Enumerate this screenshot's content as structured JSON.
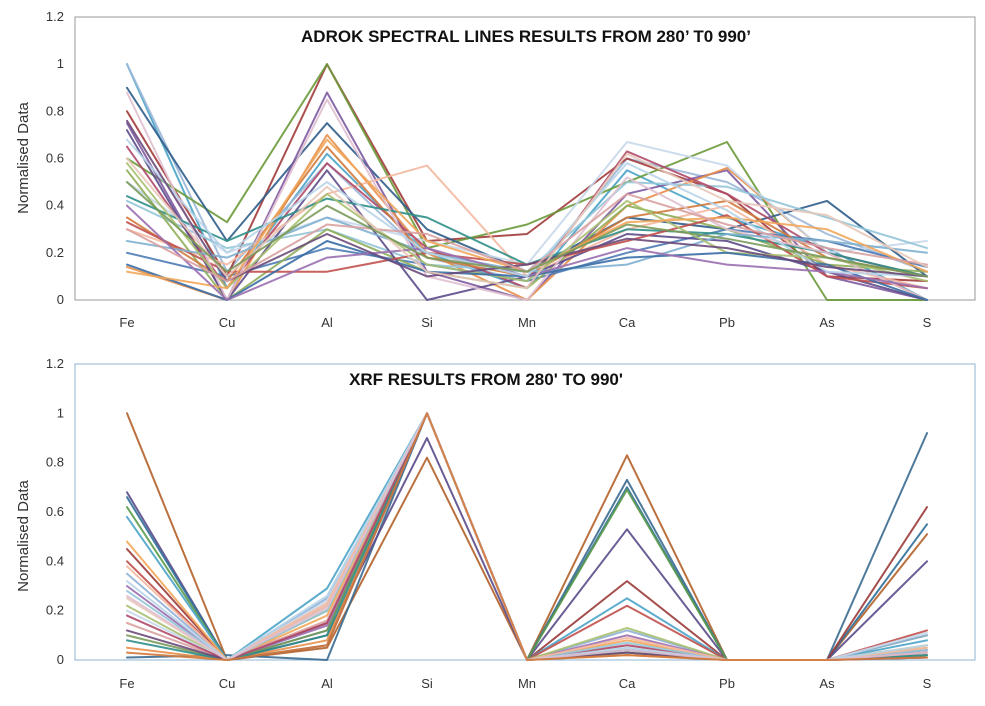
{
  "chart_data": [
    {
      "type": "line",
      "title": "ADROK SPECTRAL LINES RESULTS FROM 280’ T0 990’",
      "xlabel": "",
      "ylabel": "Normalised Data",
      "categories": [
        "Fe",
        "Cu",
        "Al",
        "Si",
        "Mn",
        "Ca",
        "Pb",
        "As",
        "S"
      ],
      "ylim": [
        0,
        1.2
      ],
      "yticks": [
        "0",
        "0.2",
        "0.4",
        "0.6",
        "0.8",
        "1",
        "1.2"
      ],
      "grid": false,
      "legend": "none",
      "frame_color": "#9a9a9a",
      "series": [
        {
          "color": "#4aa3c8",
          "values": [
            1.0,
            0.05,
            0.62,
            0.2,
            0.05,
            0.55,
            0.35,
            0.22,
            0.0
          ]
        },
        {
          "color": "#9bb7d8",
          "values": [
            1.0,
            0.12,
            0.58,
            0.18,
            0.08,
            0.6,
            0.5,
            0.28,
            0.12
          ]
        },
        {
          "color": "#a23b3b",
          "values": [
            0.8,
            0.1,
            1.0,
            0.25,
            0.28,
            0.6,
            0.45,
            0.1,
            0.08
          ]
        },
        {
          "color": "#6a9a3a",
          "values": [
            0.6,
            0.33,
            1.0,
            0.22,
            0.32,
            0.5,
            0.67,
            0.0,
            0.0
          ]
        },
        {
          "color": "#2f5d8a",
          "values": [
            0.9,
            0.25,
            0.75,
            0.3,
            0.12,
            0.35,
            0.3,
            0.42,
            0.1
          ]
        },
        {
          "color": "#7d5a9e",
          "values": [
            0.75,
            0.0,
            0.88,
            0.12,
            0.0,
            0.45,
            0.55,
            0.1,
            0.0
          ]
        },
        {
          "color": "#e88f4a",
          "values": [
            0.14,
            0.0,
            0.7,
            0.2,
            0.0,
            0.4,
            0.56,
            0.2,
            0.0
          ]
        },
        {
          "color": "#f4b8a0",
          "values": [
            0.3,
            0.15,
            0.45,
            0.57,
            0.1,
            0.3,
            0.4,
            0.15,
            0.05
          ]
        },
        {
          "color": "#c6d8ea",
          "values": [
            0.5,
            0.2,
            0.35,
            0.25,
            0.15,
            0.67,
            0.57,
            0.2,
            0.25
          ]
        },
        {
          "color": "#93c5d8",
          "values": [
            0.42,
            0.22,
            0.3,
            0.15,
            0.12,
            0.5,
            0.48,
            0.35,
            0.22
          ]
        },
        {
          "color": "#b04a6a",
          "values": [
            0.65,
            0.05,
            0.58,
            0.22,
            0.05,
            0.63,
            0.45,
            0.2,
            0.1
          ]
        },
        {
          "color": "#4e7bb5",
          "values": [
            0.2,
            0.1,
            0.22,
            0.15,
            0.08,
            0.2,
            0.3,
            0.25,
            0.14
          ]
        },
        {
          "color": "#8fae5a",
          "values": [
            0.55,
            0.0,
            0.3,
            0.12,
            0.05,
            0.4,
            0.3,
            0.15,
            0.12
          ]
        },
        {
          "color": "#d27a3c",
          "values": [
            0.35,
            0.08,
            0.65,
            0.18,
            0.1,
            0.35,
            0.42,
            0.18,
            0.1
          ]
        },
        {
          "color": "#5d4b8a",
          "values": [
            0.72,
            0.0,
            0.55,
            0.0,
            0.1,
            0.28,
            0.25,
            0.12,
            0.0
          ]
        },
        {
          "color": "#2f8f8a",
          "values": [
            0.44,
            0.25,
            0.43,
            0.35,
            0.15,
            0.3,
            0.28,
            0.2,
            0.1
          ]
        },
        {
          "color": "#c0504d",
          "values": [
            0.33,
            0.12,
            0.12,
            0.2,
            0.15,
            0.25,
            0.36,
            0.1,
            0.05
          ]
        },
        {
          "color": "#e0c0d0",
          "values": [
            0.88,
            0.0,
            0.85,
            0.1,
            0.0,
            0.52,
            0.3,
            0.2,
            0.0
          ]
        },
        {
          "color": "#7fb0d0",
          "values": [
            0.25,
            0.18,
            0.35,
            0.2,
            0.12,
            0.15,
            0.28,
            0.25,
            0.2
          ]
        },
        {
          "color": "#a8c070",
          "values": [
            0.58,
            0.05,
            0.45,
            0.15,
            0.08,
            0.42,
            0.2,
            0.18,
            0.08
          ]
        },
        {
          "color": "#3a6ea5",
          "values": [
            0.15,
            0.0,
            0.25,
            0.12,
            0.1,
            0.18,
            0.2,
            0.15,
            0.0
          ]
        },
        {
          "color": "#f2a65a",
          "values": [
            0.12,
            0.05,
            0.68,
            0.25,
            0.12,
            0.33,
            0.35,
            0.3,
            0.12
          ]
        },
        {
          "color": "#9a6fb0",
          "values": [
            0.4,
            0.0,
            0.18,
            0.22,
            0.1,
            0.22,
            0.15,
            0.12,
            0.05
          ]
        },
        {
          "color": "#b8d4e8",
          "values": [
            0.68,
            0.2,
            0.5,
            0.2,
            0.1,
            0.58,
            0.38,
            0.12,
            0.1
          ]
        },
        {
          "color": "#6a4a7a",
          "values": [
            0.76,
            0.08,
            0.28,
            0.1,
            0.15,
            0.26,
            0.22,
            0.14,
            0.1
          ]
        },
        {
          "color": "#d9a0a0",
          "values": [
            0.3,
            0.08,
            0.32,
            0.28,
            0.12,
            0.45,
            0.32,
            0.22,
            0.15
          ]
        },
        {
          "color": "#e8c8b8",
          "values": [
            0.6,
            0.1,
            0.48,
            0.12,
            0.05,
            0.62,
            0.42,
            0.36,
            0.14
          ]
        },
        {
          "color": "#7a9a5a",
          "values": [
            0.5,
            0.12,
            0.4,
            0.18,
            0.12,
            0.32,
            0.26,
            0.18,
            0.1
          ]
        }
      ]
    },
    {
      "type": "line",
      "title": "XRF RESULTS FROM 280' TO 990'",
      "xlabel": "",
      "ylabel": "Normalised Data",
      "categories": [
        "Fe",
        "Cu",
        "Al",
        "Si",
        "Mn",
        "Ca",
        "Pb",
        "As",
        "S"
      ],
      "ylim": [
        0,
        1.2
      ],
      "yticks": [
        "0",
        "0.2",
        "0.4",
        "0.6",
        "0.8",
        "1",
        "1.2"
      ],
      "grid": false,
      "legend": "none",
      "frame_color": "#8fb4d6",
      "series": [
        {
          "color": "#b2622a",
          "values": [
            1.0,
            0.0,
            0.05,
            0.82,
            0.0,
            0.83,
            0.0,
            0.0,
            0.51
          ]
        },
        {
          "color": "#3a6a8f",
          "values": [
            0.01,
            0.02,
            0.0,
            1.0,
            0.0,
            0.73,
            0.0,
            0.0,
            0.92
          ]
        },
        {
          "color": "#5a4a8a",
          "values": [
            0.68,
            0.0,
            0.1,
            0.9,
            0.0,
            0.53,
            0.0,
            0.0,
            0.4
          ]
        },
        {
          "color": "#2f6f9a",
          "values": [
            0.66,
            0.0,
            0.12,
            1.0,
            0.0,
            0.7,
            0.0,
            0.0,
            0.55
          ]
        },
        {
          "color": "#9a3a3a",
          "values": [
            0.45,
            0.0,
            0.15,
            1.0,
            0.0,
            0.32,
            0.0,
            0.0,
            0.62
          ]
        },
        {
          "color": "#5a9a4a",
          "values": [
            0.62,
            0.0,
            0.2,
            1.0,
            0.0,
            0.69,
            0.0,
            0.0,
            0.1
          ]
        },
        {
          "color": "#4aa3c8",
          "values": [
            0.58,
            0.0,
            0.29,
            1.0,
            0.0,
            0.25,
            0.0,
            0.0,
            0.08
          ]
        },
        {
          "color": "#c0504d",
          "values": [
            0.4,
            0.0,
            0.22,
            1.0,
            0.0,
            0.22,
            0.0,
            0.0,
            0.12
          ]
        },
        {
          "color": "#8fb0d8",
          "values": [
            0.35,
            0.0,
            0.25,
            1.0,
            0.0,
            0.12,
            0.0,
            0.0,
            0.1
          ]
        },
        {
          "color": "#f2a65a",
          "values": [
            0.48,
            0.0,
            0.18,
            1.0,
            0.0,
            0.08,
            0.0,
            0.0,
            0.06
          ]
        },
        {
          "color": "#9a6fb0",
          "values": [
            0.3,
            0.0,
            0.14,
            1.0,
            0.0,
            0.1,
            0.0,
            0.0,
            0.04
          ]
        },
        {
          "color": "#a8c070",
          "values": [
            0.22,
            0.0,
            0.2,
            1.0,
            0.0,
            0.13,
            0.0,
            0.0,
            0.05
          ]
        },
        {
          "color": "#e8c8b8",
          "values": [
            0.25,
            0.0,
            0.22,
            1.0,
            0.0,
            0.06,
            0.0,
            0.0,
            0.03
          ]
        },
        {
          "color": "#c6d8ea",
          "values": [
            0.2,
            0.0,
            0.24,
            1.0,
            0.0,
            0.05,
            0.0,
            0.0,
            0.11
          ]
        },
        {
          "color": "#d9a0a0",
          "values": [
            0.15,
            0.0,
            0.16,
            1.0,
            0.0,
            0.04,
            0.0,
            0.0,
            0.02
          ]
        },
        {
          "color": "#7a9a5a",
          "values": [
            0.1,
            0.0,
            0.12,
            1.0,
            0.0,
            0.03,
            0.0,
            0.0,
            0.02
          ]
        },
        {
          "color": "#e88f4a",
          "values": [
            0.05,
            0.0,
            0.08,
            1.0,
            0.0,
            0.02,
            0.0,
            0.0,
            0.01
          ]
        },
        {
          "color": "#2f8f8a",
          "values": [
            0.08,
            0.0,
            0.1,
            1.0,
            0.0,
            0.04,
            0.0,
            0.0,
            0.02
          ]
        },
        {
          "color": "#b04a6a",
          "values": [
            0.18,
            0.0,
            0.15,
            1.0,
            0.0,
            0.06,
            0.0,
            0.0,
            0.03
          ]
        },
        {
          "color": "#93c5d8",
          "values": [
            0.28,
            0.0,
            0.2,
            1.0,
            0.0,
            0.07,
            0.0,
            0.0,
            0.04
          ]
        },
        {
          "color": "#6a4a7a",
          "values": [
            0.12,
            0.0,
            0.06,
            1.0,
            0.0,
            0.03,
            0.0,
            0.0,
            0.01
          ]
        },
        {
          "color": "#f4b8a0",
          "values": [
            0.38,
            0.0,
            0.23,
            1.0,
            0.0,
            0.09,
            0.0,
            0.0,
            0.05
          ]
        },
        {
          "color": "#b8d4e8",
          "values": [
            0.32,
            0.0,
            0.26,
            1.0,
            0.0,
            0.05,
            0.0,
            0.0,
            0.06
          ]
        },
        {
          "color": "#e0c0d0",
          "values": [
            0.26,
            0.0,
            0.21,
            1.0,
            0.0,
            0.04,
            0.0,
            0.0,
            0.03
          ]
        },
        {
          "color": "#d27a3c",
          "values": [
            0.03,
            0.0,
            0.06,
            1.0,
            0.0,
            0.02,
            0.0,
            0.0,
            0.01
          ]
        }
      ]
    }
  ]
}
